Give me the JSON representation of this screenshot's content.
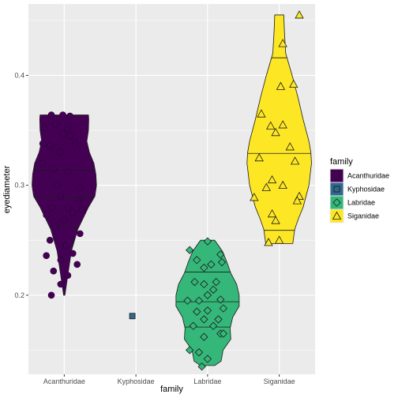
{
  "chart_data": {
    "type": "violin",
    "xlabel": "family",
    "ylabel": "eyediameter",
    "categories": [
      "Acanthuridae",
      "Kyphosidae",
      "Labridae",
      "Siganidae"
    ],
    "ylim": [
      0.128,
      0.465
    ],
    "yticks": [
      0.2,
      0.3,
      0.4
    ],
    "ytick_labels": [
      "0.2",
      "0.3",
      "0.4"
    ],
    "legend": {
      "title": "family",
      "position": "right",
      "entries": [
        "Acanthuridae",
        "Kyphosidae",
        "Labridae",
        "Siganidae"
      ]
    },
    "grid": true,
    "colors": {
      "Acanthuridae": "#440154",
      "Kyphosidae": "#31688e",
      "Labridae": "#35b779",
      "Siganidae": "#fde725",
      "panel": "#ebebeb",
      "gridline": "#ffffff"
    },
    "shapes": {
      "Acanthuridae": "circle",
      "Kyphosidae": "square",
      "Labridae": "diamond",
      "Siganidae": "triangle"
    },
    "violins": [
      {
        "family": "Acanthuridae",
        "quantiles": [
          0.263,
          0.289,
          0.314
        ],
        "profile": [
          [
            0.2,
            0.02
          ],
          [
            0.21,
            0.07
          ],
          [
            0.22,
            0.12
          ],
          [
            0.24,
            0.22
          ],
          [
            0.26,
            0.42
          ],
          [
            0.28,
            0.75
          ],
          [
            0.29,
            0.95
          ],
          [
            0.3,
            1.0
          ],
          [
            0.31,
            0.98
          ],
          [
            0.32,
            0.92
          ],
          [
            0.33,
            0.78
          ],
          [
            0.34,
            0.7
          ],
          [
            0.35,
            0.75
          ],
          [
            0.36,
            0.76
          ],
          [
            0.364,
            0.75
          ]
        ]
      },
      {
        "family": "Labridae",
        "quantiles": [
          0.171,
          0.194,
          0.221
        ],
        "profile": [
          [
            0.136,
            0.22
          ],
          [
            0.14,
            0.42
          ],
          [
            0.15,
            0.48
          ],
          [
            0.16,
            0.72
          ],
          [
            0.17,
            0.7
          ],
          [
            0.18,
            0.78
          ],
          [
            0.19,
            0.98
          ],
          [
            0.2,
            0.98
          ],
          [
            0.21,
            0.9
          ],
          [
            0.22,
            0.72
          ],
          [
            0.23,
            0.6
          ],
          [
            0.24,
            0.46
          ],
          [
            0.25,
            0.22
          ]
        ]
      },
      {
        "family": "Siganidae",
        "quantiles": [
          0.259,
          0.329,
          0.416
        ],
        "profile": [
          [
            0.247,
            0.42
          ],
          [
            0.26,
            0.48
          ],
          [
            0.27,
            0.6
          ],
          [
            0.28,
            0.74
          ],
          [
            0.3,
            0.92
          ],
          [
            0.32,
            1.0
          ],
          [
            0.33,
            0.98
          ],
          [
            0.34,
            0.92
          ],
          [
            0.36,
            0.74
          ],
          [
            0.38,
            0.58
          ],
          [
            0.4,
            0.4
          ],
          [
            0.42,
            0.2
          ],
          [
            0.44,
            0.16
          ],
          [
            0.455,
            0.14
          ]
        ]
      }
    ],
    "points": {
      "Acanthuridae": [
        [
          -0.18,
          0.364
        ],
        [
          -0.02,
          0.364
        ],
        [
          0.08,
          0.363
        ],
        [
          -0.28,
          0.352
        ],
        [
          -0.12,
          0.356
        ],
        [
          0.05,
          0.352
        ],
        [
          -0.3,
          0.338
        ],
        [
          -0.02,
          0.347
        ],
        [
          0.08,
          0.345
        ],
        [
          -0.2,
          0.336
        ],
        [
          -0.05,
          0.33
        ],
        [
          0.15,
          0.338
        ],
        [
          -0.3,
          0.32
        ],
        [
          -0.15,
          0.315
        ],
        [
          0.05,
          0.312
        ],
        [
          0.22,
          0.298
        ],
        [
          -0.1,
          0.3
        ],
        [
          -0.05,
          0.29
        ],
        [
          0.2,
          0.286
        ],
        [
          -0.18,
          0.28
        ],
        [
          0.05,
          0.28
        ],
        [
          -0.25,
          0.273
        ],
        [
          0.12,
          0.275
        ],
        [
          0.25,
          0.278
        ],
        [
          0.0,
          0.268
        ],
        [
          -0.12,
          0.262
        ],
        [
          0.22,
          0.256
        ],
        [
          -0.2,
          0.25
        ],
        [
          0.02,
          0.245
        ],
        [
          0.12,
          0.238
        ],
        [
          -0.25,
          0.236
        ],
        [
          -0.05,
          0.232
        ],
        [
          0.18,
          0.228
        ],
        [
          -0.15,
          0.222
        ],
        [
          0.05,
          0.218
        ],
        [
          -0.05,
          0.21
        ],
        [
          -0.18,
          0.2
        ]
      ],
      "Kyphosidae": [
        [
          -0.05,
          0.181
        ]
      ],
      "Labridae": [
        [
          -0.25,
          0.241
        ],
        [
          0.0,
          0.249
        ],
        [
          -0.15,
          0.232
        ],
        [
          0.18,
          0.237
        ],
        [
          0.2,
          0.23
        ],
        [
          -0.05,
          0.225
        ],
        [
          0.05,
          0.228
        ],
        [
          -0.18,
          0.212
        ],
        [
          -0.05,
          0.21
        ],
        [
          0.12,
          0.212
        ],
        [
          0.0,
          0.2
        ],
        [
          0.08,
          0.205
        ],
        [
          -0.28,
          0.195
        ],
        [
          -0.12,
          0.195
        ],
        [
          0.18,
          0.196
        ],
        [
          -0.15,
          0.185
        ],
        [
          0.0,
          0.186
        ],
        [
          0.22,
          0.188
        ],
        [
          -0.05,
          0.178
        ],
        [
          0.15,
          0.178
        ],
        [
          -0.2,
          0.172
        ],
        [
          0.08,
          0.172
        ],
        [
          -0.05,
          0.162
        ],
        [
          0.18,
          0.165
        ],
        [
          0.22,
          0.165
        ],
        [
          -0.12,
          0.148
        ],
        [
          -0.25,
          0.15
        ],
        [
          0.0,
          0.142
        ],
        [
          -0.08,
          0.135
        ]
      ],
      "Siganidae": [
        [
          0.28,
          0.455
        ],
        [
          0.05,
          0.429
        ],
        [
          0.2,
          0.392
        ],
        [
          0.02,
          0.39
        ],
        [
          -0.25,
          0.365
        ],
        [
          -0.12,
          0.354
        ],
        [
          0.05,
          0.355
        ],
        [
          -0.05,
          0.348
        ],
        [
          0.15,
          0.335
        ],
        [
          -0.28,
          0.325
        ],
        [
          0.22,
          0.322
        ],
        [
          -0.1,
          0.305
        ],
        [
          0.05,
          0.3
        ],
        [
          -0.18,
          0.298
        ],
        [
          0.28,
          0.29
        ],
        [
          -0.35,
          0.289
        ],
        [
          0.25,
          0.286
        ],
        [
          -0.1,
          0.274
        ],
        [
          -0.05,
          0.268
        ],
        [
          0.0,
          0.25
        ],
        [
          -0.15,
          0.248
        ]
      ]
    }
  }
}
